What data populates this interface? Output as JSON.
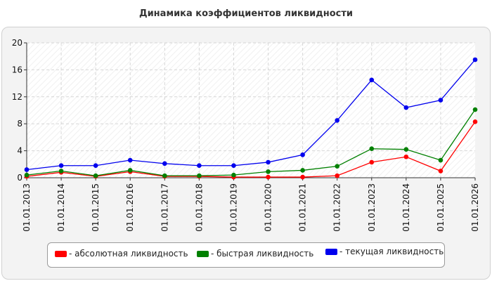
{
  "chart_data": {
    "type": "line",
    "title": "Динамика коэффициентов ликвидности",
    "xlabel": "",
    "ylabel": "",
    "categories": [
      "01.01.2013",
      "01.01.2014",
      "01.01.2015",
      "01.01.2016",
      "01.01.2017",
      "01.01.2018",
      "01.01.2019",
      "01.01.2020",
      "01.01.2021",
      "01.01.2022",
      "01.01.2023",
      "01.01.2024",
      "01.01.2025",
      "01.01.2026"
    ],
    "ylim": [
      0,
      20
    ],
    "yticks": [
      "0",
      "4",
      "8",
      "12",
      "16",
      "20"
    ],
    "grid": true,
    "legend_position": "bottom",
    "series": [
      {
        "name": "- абсолютная ликвидность",
        "color": "#ff0000",
        "values": [
          0.2,
          0.8,
          0.2,
          0.9,
          0.2,
          0.2,
          0.1,
          0.1,
          0.1,
          0.3,
          2.3,
          3.1,
          1.0,
          8.3
        ]
      },
      {
        "name": "- быстрая ликвидность",
        "color": "#008000",
        "values": [
          0.4,
          1.0,
          0.3,
          1.1,
          0.3,
          0.3,
          0.4,
          0.9,
          1.1,
          1.7,
          4.3,
          4.2,
          2.6,
          10.1
        ]
      },
      {
        "name": "- текущая ликвидность",
        "color": "#0000ee",
        "values": [
          1.2,
          1.8,
          1.8,
          2.6,
          2.1,
          1.8,
          1.8,
          2.3,
          3.4,
          8.5,
          14.5,
          10.4,
          11.5,
          17.5
        ]
      }
    ]
  }
}
